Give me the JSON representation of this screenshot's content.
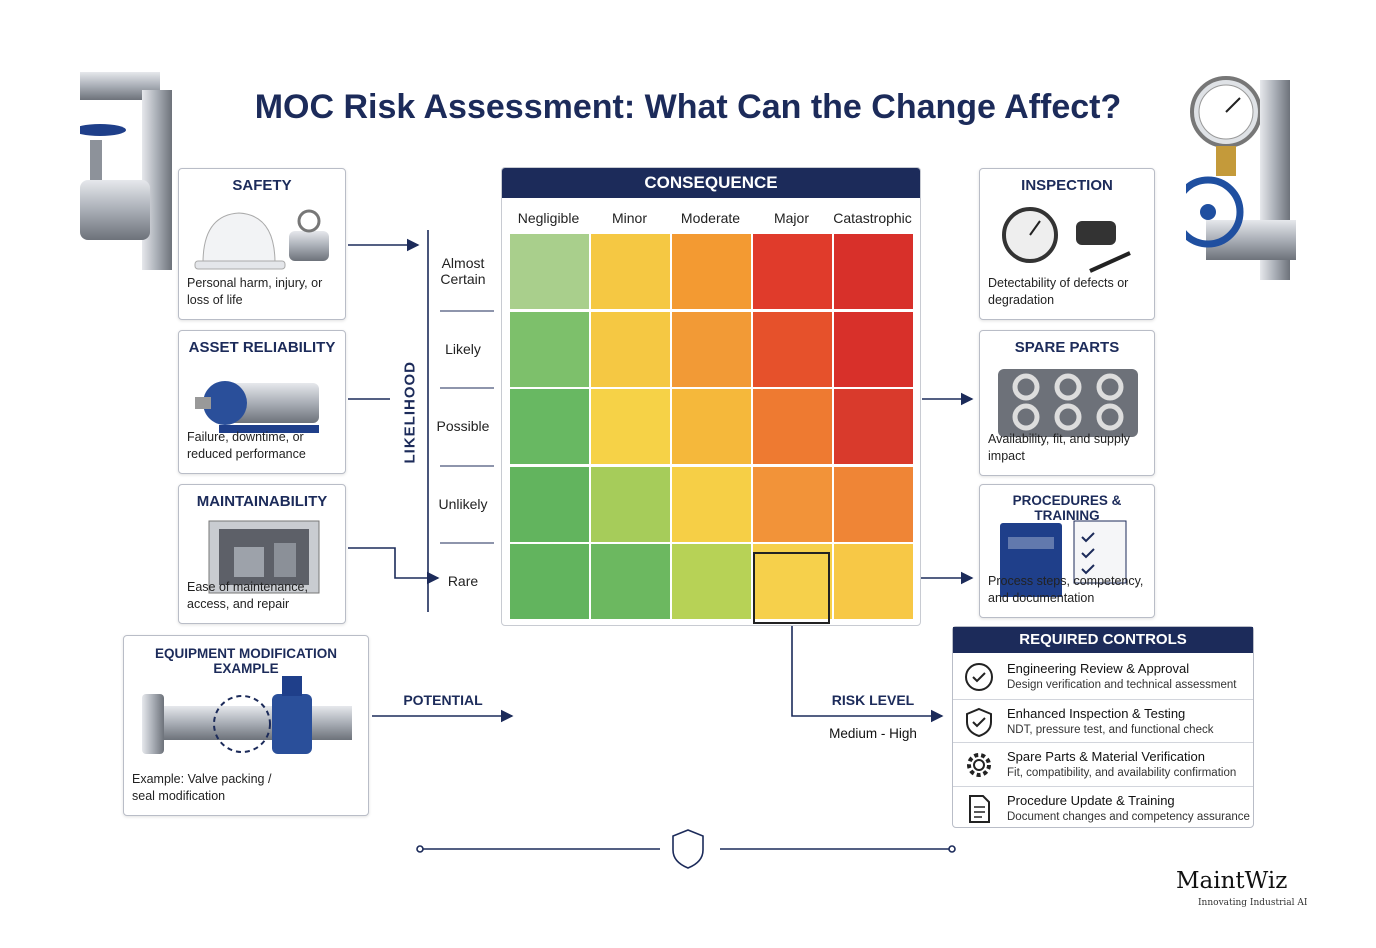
{
  "header": {
    "title": "MOC Risk Assessment: What Can the Change Affect?"
  },
  "left_cards": [
    {
      "title": "SAFETY",
      "description": "Personal harm, injury, or loss of life"
    },
    {
      "title": "ASSET RELIABILITY",
      "description": "Failure, downtime, or reduced performance"
    },
    {
      "title": "MAINTAINABILITY",
      "description": "Ease of maintenance, access, and repair"
    }
  ],
  "example": {
    "title": "EQUIPMENT MODIFICATION EXAMPLE",
    "description": "Example: Valve packing / seal modification"
  },
  "matrix": {
    "title": "CONSEQUENCE",
    "axis_label": "LIKELIHOOD",
    "columns": [
      "Negligible",
      "Minor",
      "Moderate",
      "Major",
      "Catastrophic"
    ],
    "rows": [
      {
        "label": "Almost Certain",
        "colors": [
          "#a9cf8c",
          "#f5c843",
          "#f39a32",
          "#e03b2b",
          "#d8302a"
        ]
      },
      {
        "label": "Likely",
        "colors": [
          "#7dc06b",
          "#f5c843",
          "#f29a36",
          "#e6512b",
          "#d8302a"
        ]
      },
      {
        "label": "Possible",
        "colors": [
          "#68b862",
          "#f6d247",
          "#f5b83b",
          "#ee7a31",
          "#d93a2c"
        ]
      },
      {
        "label": "Unlikely",
        "colors": [
          "#62b45e",
          "#a6cc5a",
          "#f6cf46",
          "#f29339",
          "#ef8536"
        ]
      },
      {
        "label": "Rare",
        "colors": [
          "#62b45e",
          "#6cb860",
          "#b7d256",
          "#f6d04b",
          "#f7c846"
        ]
      }
    ]
  },
  "flow": {
    "potential": "POTENTIAL",
    "risk_level": "RISK LEVEL",
    "risk_value": "Medium - High"
  },
  "right_cards": [
    {
      "title": "INSPECTION",
      "description": "Detectability of defects or degradation"
    },
    {
      "title": "SPARE PARTS",
      "description": "Availability, fit, and supply impact"
    },
    {
      "title": "PROCEDURES & TRAINING",
      "description": "Process steps, competency, and documentation"
    }
  ],
  "controls": {
    "title": "REQUIRED CONTROLS",
    "items": [
      {
        "title": "Engineering Review & Approval",
        "description": "Design verification and technical assessment"
      },
      {
        "title": "Enhanced Inspection & Testing",
        "description": "NDT, pressure test, and functional check"
      },
      {
        "title": "Spare Parts & Material Verification",
        "description": "Fit, compatibility, and availability confirmation"
      },
      {
        "title": "Procedure Update & Training",
        "description": "Document changes and competency assurance"
      }
    ]
  },
  "logo": {
    "name": "MaintWiz",
    "tagline": "Innovating Industrial AI"
  }
}
